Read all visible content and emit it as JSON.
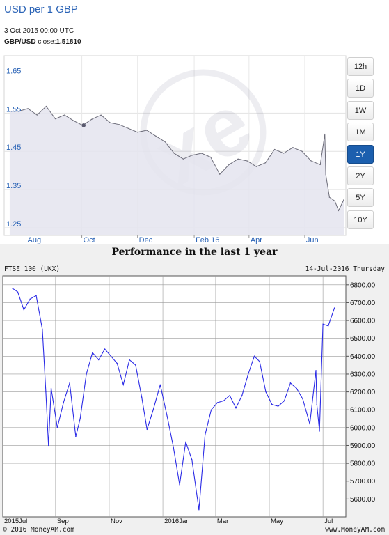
{
  "top_chart": {
    "title": "USD per 1 GBP",
    "date_text": "3 Oct 2015 00:00 UTC",
    "pair_label": "GBP/USD",
    "close_label": "close:",
    "close_value": "1.51810",
    "range_buttons": [
      {
        "label": "12h",
        "active": false
      },
      {
        "label": "1D",
        "active": false
      },
      {
        "label": "1W",
        "active": false
      },
      {
        "label": "1M",
        "active": false
      },
      {
        "label": "1Y",
        "active": true
      },
      {
        "label": "2Y",
        "active": false
      },
      {
        "label": "5Y",
        "active": false
      },
      {
        "label": "10Y",
        "active": false
      }
    ],
    "colors": {
      "line": "#6b6b78",
      "fill": "#e7e7ef",
      "accent": "#1c5fae",
      "title": "#2a63b6"
    }
  },
  "bottom_chart": {
    "title": "Performance in the last 1 year",
    "index_label": "FTSE 100 (UKX)",
    "date_text": "14-Jul-2016 Thursday",
    "copyright": "© 2016 MoneyAM.com",
    "url": "www.MoneyAM.com",
    "colors": {
      "line": "#2a2ae6",
      "grid": "#9a9a9a"
    }
  },
  "chart_data": [
    {
      "type": "area",
      "title": "USD per 1 GBP",
      "xlabel": "",
      "ylabel": "",
      "x_ticks": [
        "Aug",
        "Oct",
        "Dec",
        "Feb 16",
        "Apr",
        "Jun"
      ],
      "y_ticks": [
        1.65,
        1.55,
        1.45,
        1.35,
        1.25
      ],
      "ylim": [
        1.23,
        1.7
      ],
      "grid": true,
      "highlight_point": {
        "x": "2015-10-03",
        "y": 1.5181
      },
      "x": [
        "2015-07-14",
        "2015-07-24",
        "2015-08-03",
        "2015-08-13",
        "2015-08-23",
        "2015-09-02",
        "2015-09-12",
        "2015-09-22",
        "2015-10-02",
        "2015-10-12",
        "2015-10-22",
        "2015-11-01",
        "2015-11-11",
        "2015-11-21",
        "2015-12-01",
        "2015-12-11",
        "2015-12-21",
        "2015-12-31",
        "2016-01-10",
        "2016-01-20",
        "2016-01-30",
        "2016-02-09",
        "2016-02-19",
        "2016-02-29",
        "2016-03-10",
        "2016-03-20",
        "2016-03-30",
        "2016-04-09",
        "2016-04-19",
        "2016-04-29",
        "2016-05-09",
        "2016-05-19",
        "2016-05-29",
        "2016-06-08",
        "2016-06-18",
        "2016-06-23",
        "2016-06-24",
        "2016-06-28",
        "2016-07-04",
        "2016-07-08",
        "2016-07-14"
      ],
      "series": [
        {
          "values": [
            1.555,
            1.555,
            1.562,
            1.545,
            1.568,
            1.535,
            1.545,
            1.53,
            1.518,
            1.534,
            1.545,
            1.525,
            1.52,
            1.51,
            1.5,
            1.505,
            1.49,
            1.475,
            1.445,
            1.43,
            1.44,
            1.445,
            1.435,
            1.39,
            1.415,
            1.43,
            1.425,
            1.41,
            1.42,
            1.455,
            1.445,
            1.46,
            1.45,
            1.425,
            1.415,
            1.495,
            1.39,
            1.33,
            1.32,
            1.295,
            1.325
          ]
        }
      ]
    },
    {
      "type": "line",
      "title": "Performance in the last 1 year",
      "xlabel": "",
      "ylabel": "",
      "x_ticks": [
        "2015Jul",
        "Sep",
        "Nov",
        "2016Jan",
        "Mar",
        "May",
        "Jul"
      ],
      "y_ticks": [
        6800,
        6700,
        6600,
        6500,
        6400,
        6300,
        6200,
        6100,
        6000,
        5900,
        5800,
        5700,
        5600
      ],
      "ylim": [
        5500,
        6850
      ],
      "grid": true,
      "x": [
        "2015-07-14",
        "2015-07-20",
        "2015-07-27",
        "2015-08-03",
        "2015-08-10",
        "2015-08-17",
        "2015-08-21",
        "2015-08-24",
        "2015-08-27",
        "2015-09-03",
        "2015-09-10",
        "2015-09-17",
        "2015-09-24",
        "2015-09-29",
        "2015-10-06",
        "2015-10-13",
        "2015-10-20",
        "2015-10-27",
        "2015-11-03",
        "2015-11-10",
        "2015-11-17",
        "2015-11-24",
        "2015-12-01",
        "2015-12-08",
        "2015-12-14",
        "2015-12-21",
        "2015-12-29",
        "2016-01-06",
        "2016-01-13",
        "2016-01-20",
        "2016-01-27",
        "2016-02-03",
        "2016-02-11",
        "2016-02-18",
        "2016-02-25",
        "2016-03-03",
        "2016-03-10",
        "2016-03-17",
        "2016-03-24",
        "2016-03-31",
        "2016-04-07",
        "2016-04-14",
        "2016-04-20",
        "2016-04-27",
        "2016-05-04",
        "2016-05-11",
        "2016-05-18",
        "2016-05-25",
        "2016-06-01",
        "2016-06-08",
        "2016-06-16",
        "2016-06-23",
        "2016-06-24",
        "2016-06-27",
        "2016-07-01",
        "2016-07-07",
        "2016-07-14"
      ],
      "series": [
        {
          "name": "FTSE 100 (UKX)",
          "values": [
            6780,
            6760,
            6660,
            6720,
            6740,
            6550,
            6200,
            5900,
            6220,
            6000,
            6140,
            6250,
            5950,
            6050,
            6300,
            6420,
            6380,
            6440,
            6400,
            6360,
            6240,
            6380,
            6350,
            6170,
            5990,
            6100,
            6240,
            6060,
            5890,
            5680,
            5920,
            5820,
            5540,
            5960,
            6100,
            6140,
            6150,
            6180,
            6110,
            6180,
            6300,
            6400,
            6370,
            6200,
            6130,
            6120,
            6150,
            6250,
            6220,
            6160,
            6020,
            6320,
            6130,
            5980,
            6580,
            6570,
            6670
          ]
        }
      ]
    }
  ]
}
